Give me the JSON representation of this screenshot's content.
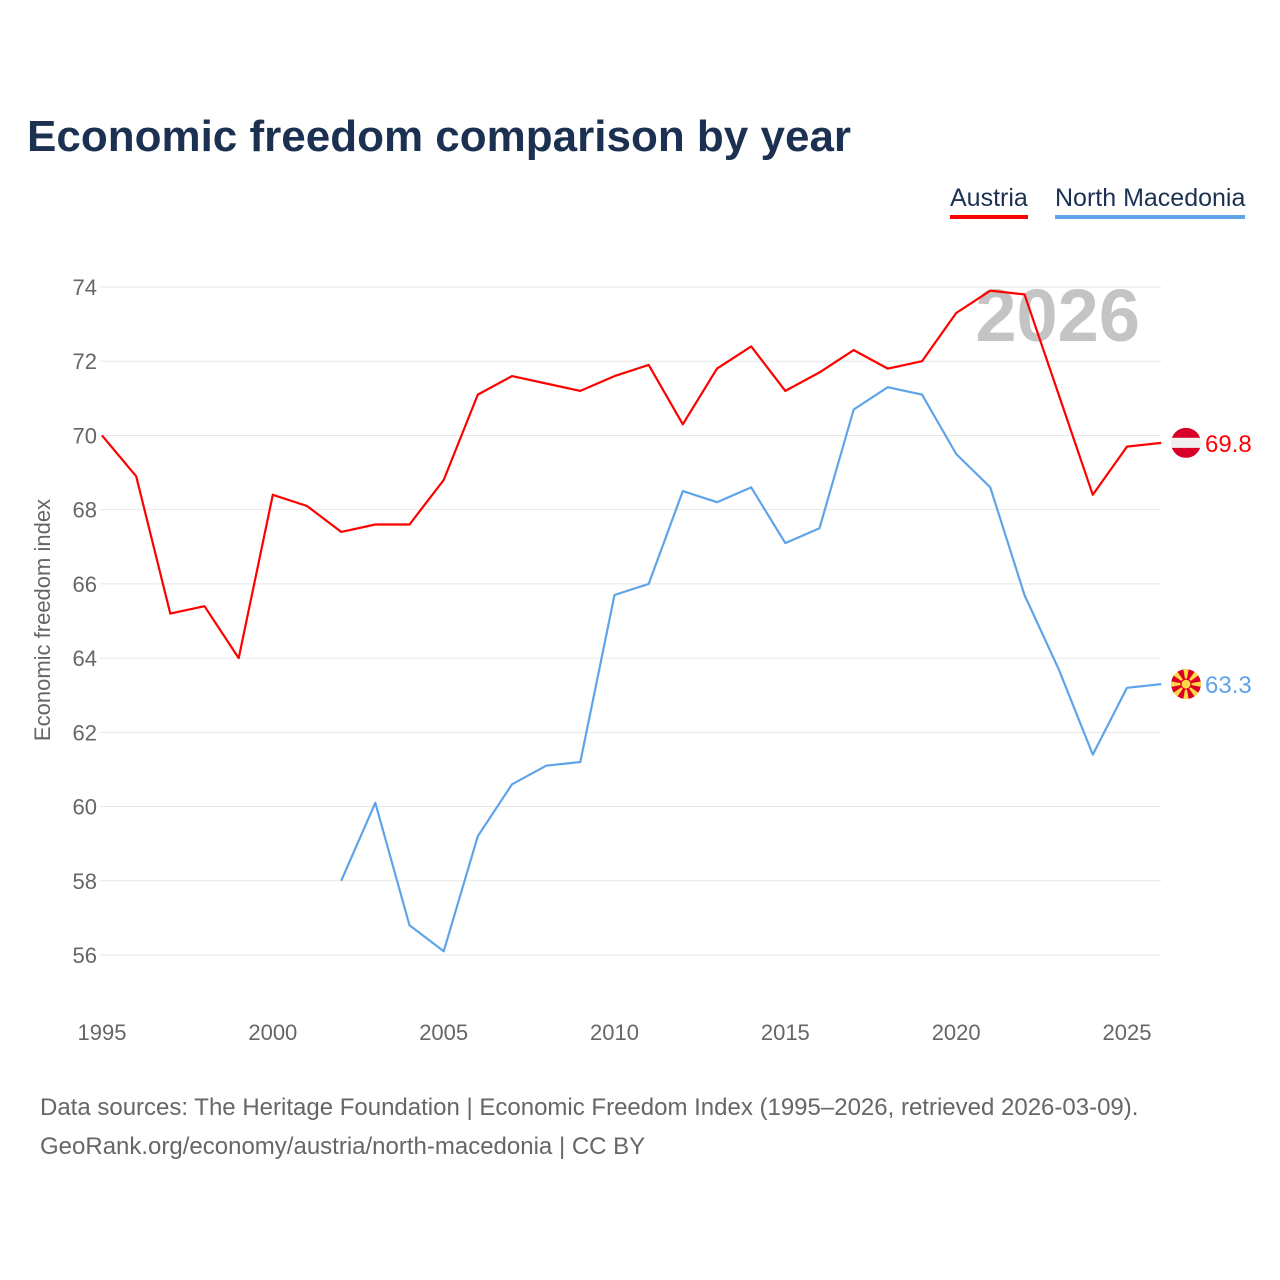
{
  "chart_data": {
    "type": "line",
    "title": "Economic freedom comparison by year",
    "xlabel": "",
    "ylabel": "Economic freedom index",
    "xlim": [
      1995,
      2026
    ],
    "ylim": [
      55,
      74.5
    ],
    "yticks": [
      56,
      58,
      60,
      62,
      64,
      66,
      68,
      70,
      72,
      74
    ],
    "xticks": [
      1995,
      2000,
      2005,
      2010,
      2015,
      2020,
      2025
    ],
    "grid": true,
    "legend_position": "top-right",
    "watermark_year": "2026",
    "series": [
      {
        "name": "Austria",
        "color": "#ff0000",
        "end_label": "69.8",
        "flag": "austria-flag",
        "x": [
          1995,
          1996,
          1997,
          1998,
          1999,
          2000,
          2001,
          2002,
          2003,
          2004,
          2005,
          2006,
          2007,
          2008,
          2009,
          2010,
          2011,
          2012,
          2013,
          2014,
          2015,
          2016,
          2017,
          2018,
          2019,
          2020,
          2021,
          2022,
          2023,
          2024,
          2025,
          2026
        ],
        "values": [
          70.0,
          68.9,
          65.2,
          65.4,
          64.0,
          68.4,
          68.1,
          67.4,
          67.6,
          67.6,
          68.8,
          71.1,
          71.6,
          71.4,
          71.2,
          71.6,
          71.9,
          70.3,
          71.8,
          72.4,
          71.2,
          71.7,
          72.3,
          71.8,
          72.0,
          73.3,
          73.9,
          73.8,
          71.1,
          68.4,
          69.7,
          69.8
        ]
      },
      {
        "name": "North Macedonia",
        "color": "#5fa4e8",
        "end_label": "63.3",
        "flag": "north-macedonia-flag",
        "x": [
          2002,
          2003,
          2004,
          2005,
          2006,
          2007,
          2008,
          2009,
          2010,
          2011,
          2012,
          2013,
          2014,
          2015,
          2016,
          2017,
          2018,
          2019,
          2020,
          2021,
          2022,
          2023,
          2024,
          2025,
          2026
        ],
        "values": [
          58.0,
          60.1,
          56.8,
          56.1,
          59.2,
          60.6,
          61.1,
          61.2,
          65.7,
          66.0,
          68.5,
          68.2,
          68.6,
          67.1,
          67.5,
          70.7,
          71.3,
          71.1,
          69.5,
          68.6,
          65.7,
          63.7,
          61.4,
          63.2,
          63.3
        ]
      }
    ]
  },
  "footer": {
    "line1": "Data sources: The Heritage Foundation | Economic Freedom Index (1995–2026, retrieved 2026-03-09).",
    "line2": "GeoRank.org/economy/austria/north-macedonia | CC BY"
  }
}
